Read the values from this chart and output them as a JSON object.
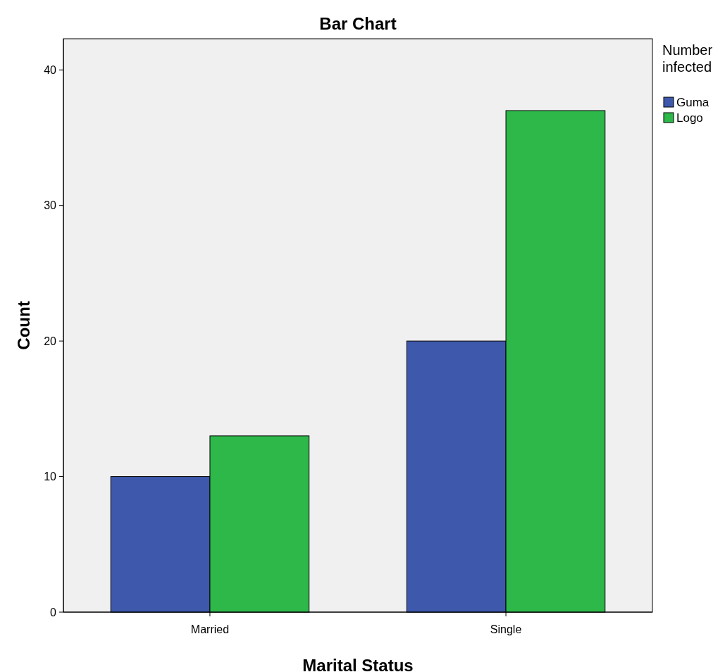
{
  "chart_data": {
    "type": "bar",
    "title": "Bar Chart",
    "xlabel": "Marital Status",
    "ylabel": "Count",
    "legend_title": "Number infected",
    "categories": [
      "Married",
      "Single"
    ],
    "series": [
      {
        "name": "Guma",
        "color": "#3e58ac",
        "values": [
          10,
          20
        ]
      },
      {
        "name": "Logo",
        "color": "#2eb84a",
        "values": [
          13,
          37
        ]
      }
    ],
    "ylim": [
      0,
      42.3
    ],
    "yticks": [
      0,
      10,
      20,
      30,
      40
    ],
    "grid": false,
    "legend": "top right"
  }
}
